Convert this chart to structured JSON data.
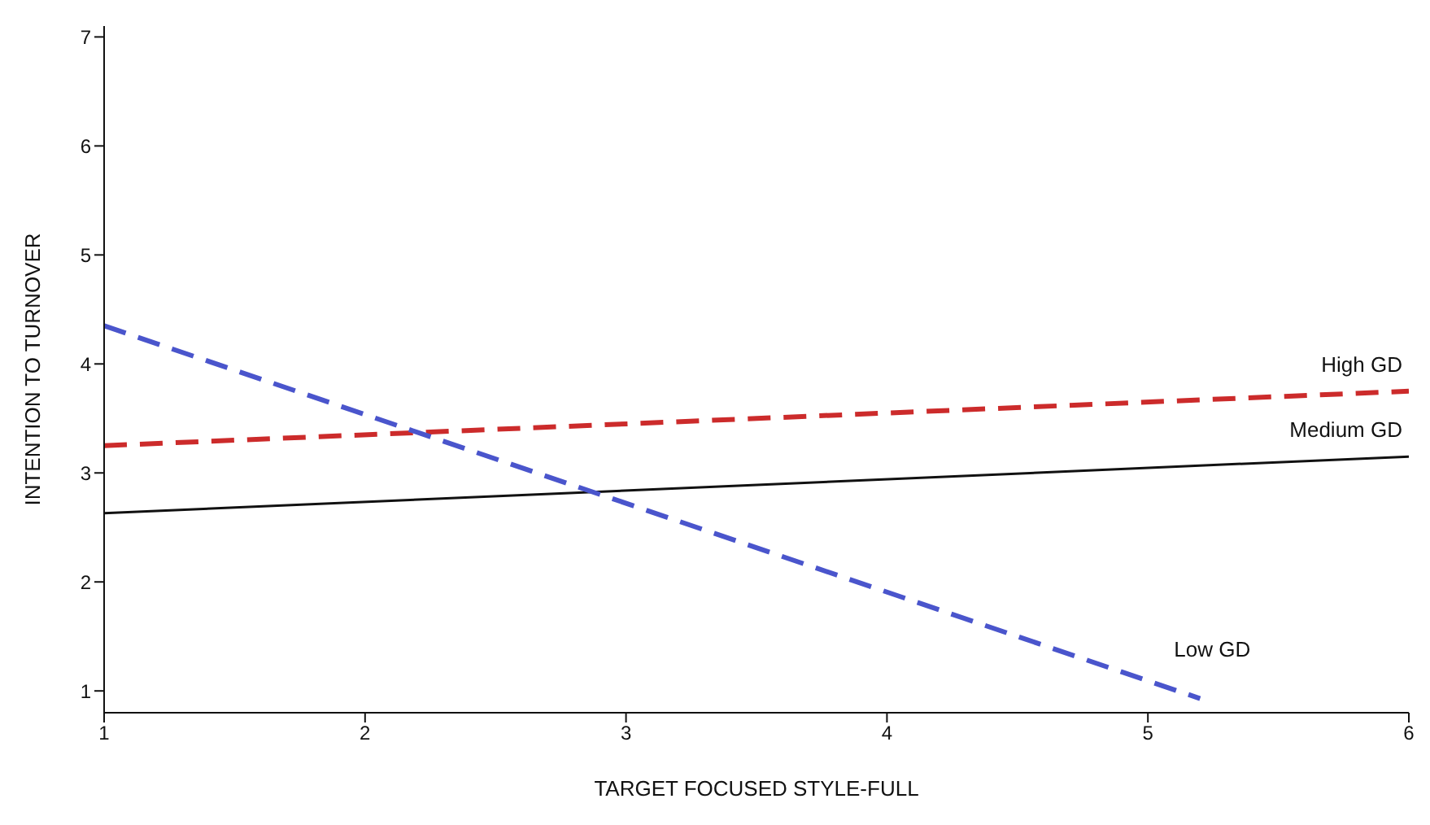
{
  "chart_data": {
    "type": "line",
    "xlabel": "TARGET FOCUSED STYLE-FULL",
    "ylabel": "INTENTION TO TURNOVER",
    "xlim": [
      1,
      6
    ],
    "xticks": [
      1,
      2,
      3,
      4,
      5,
      6
    ],
    "ylim": [
      0.8,
      7.1
    ],
    "yticks": [
      1,
      2,
      3,
      4,
      5,
      6,
      7
    ],
    "grid": false,
    "legend": false,
    "marker": "none",
    "series": [
      {
        "name": "High GD",
        "color": "#cc2b2b",
        "line_style": "dashed",
        "x": [
          1,
          6
        ],
        "values": [
          3.25,
          3.75
        ]
      },
      {
        "name": "Medium GD",
        "color": "#111111",
        "line_style": "solid",
        "x": [
          1,
          6
        ],
        "values": [
          2.63,
          3.15
        ]
      },
      {
        "name": "Low GD",
        "color": "#4a55cc",
        "line_style": "dashed",
        "x": [
          1,
          5.2
        ],
        "values": [
          4.35,
          0.93
        ]
      }
    ]
  }
}
